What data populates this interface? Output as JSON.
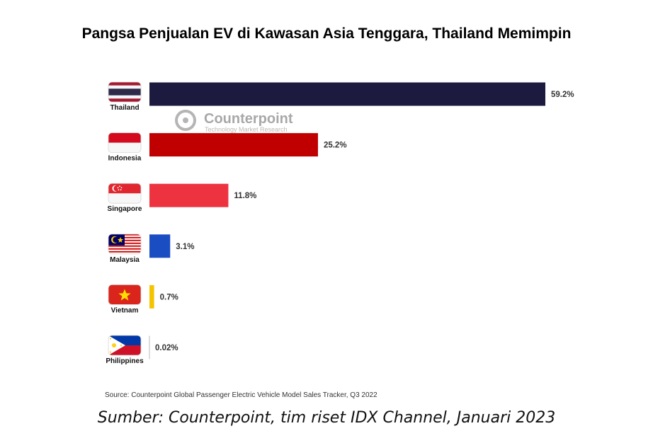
{
  "title": "Pangsa Penjualan EV di Kawasan Asia Tenggara, Thailand Memimpin",
  "watermark": {
    "brand": "Counterpoint",
    "tagline": "Technology Market Research"
  },
  "source_note": "Source: Counterpoint Global Passenger Electric Vehicle Model Sales Tracker, Q3 2022",
  "footer": "Sumber: Counterpoint, tim riset IDX Channel, Januari 2023",
  "chart_data": {
    "type": "bar",
    "orientation": "horizontal",
    "categories": [
      "Thailand",
      "Indonesia",
      "Singapore",
      "Malaysia",
      "Vietnam",
      "Philippines"
    ],
    "values": [
      59.2,
      25.2,
      11.8,
      3.1,
      0.7,
      0.02
    ],
    "value_labels": [
      "59.2%",
      "25.2%",
      "11.8%",
      "3.1%",
      "0.7%",
      "0.02%"
    ],
    "colors": [
      "#1c1a3e",
      "#c00000",
      "#ee3340",
      "#1a4cc2",
      "#f5c400",
      "#bbbbbb"
    ],
    "flags": [
      "thailand-flag-icon",
      "indonesia-flag-icon",
      "singapore-flag-icon",
      "malaysia-flag-icon",
      "vietnam-flag-icon",
      "philippines-flag-icon"
    ],
    "title": "",
    "xlabel": "",
    "ylabel": "",
    "xlim": [
      0,
      59.2
    ],
    "grid": false
  }
}
